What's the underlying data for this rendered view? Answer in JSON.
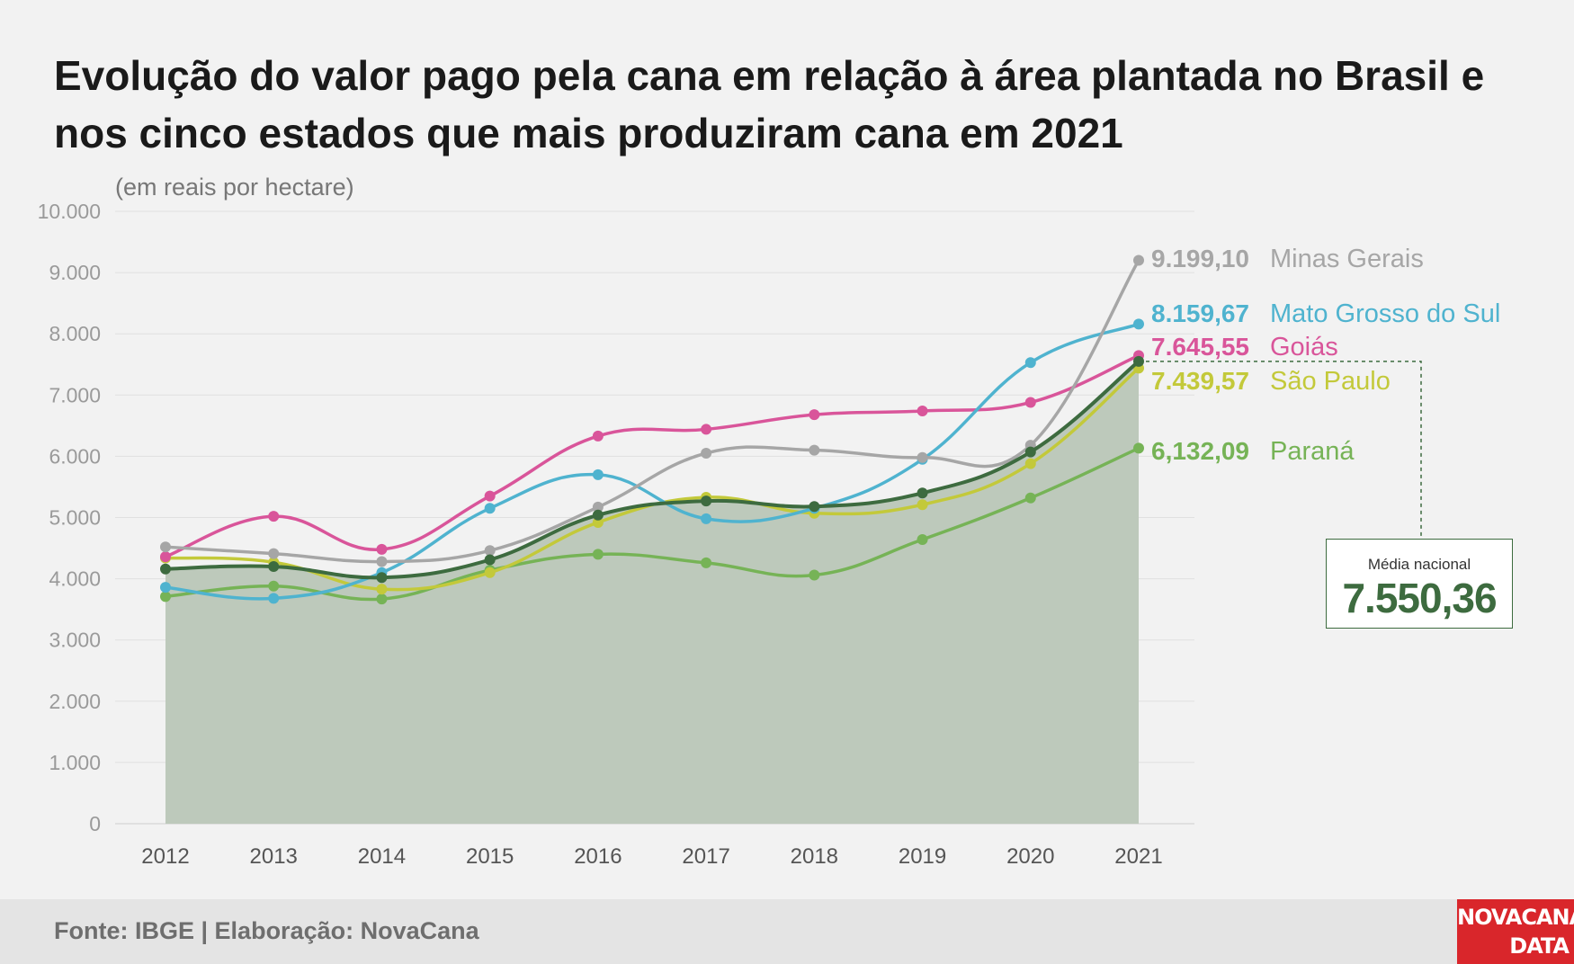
{
  "title": "Evolução do valor pago pela cana em relação à área plantada no Brasil e nos cinco estados que mais produziram cana em 2021",
  "colors": {
    "background": "#f2f2f2",
    "area_fill": "#bdc9bb",
    "national": "#3d6b3f",
    "minas_gerais": "#a6a6a6",
    "mato_grosso_do_sul": "#4fb3cf",
    "goias": "#d9559a",
    "sao_paulo": "#c3c93a",
    "parana": "#76b356",
    "logo": "#d9262b"
  },
  "average_box": {
    "label": "Média nacional",
    "value": "7.550,36"
  },
  "footer": {
    "source": "Fonte: IBGE | Elaboração: NovaCana",
    "logo_line1": "NOVACANA",
    "logo_line2": "DATA"
  },
  "chart_data": {
    "type": "line",
    "title": "Evolução do valor pago pela cana em relação à área plantada no Brasil e nos cinco estados que mais produziram cana em 2021",
    "subtitle": "(em reais por hectare)",
    "xlabel": "",
    "ylabel": "",
    "ylim": [
      0,
      10000
    ],
    "grid": true,
    "legend": "end-labels",
    "y_ticks": [
      0,
      1000,
      2000,
      3000,
      4000,
      5000,
      6000,
      7000,
      8000,
      9000,
      10000
    ],
    "y_tick_labels": [
      "0",
      "1.000",
      "2.000",
      "3.000",
      "4.000",
      "5.000",
      "6.000",
      "7.000",
      "8.000",
      "9.000",
      "10.000"
    ],
    "x": [
      "2012",
      "2013",
      "2014",
      "2015",
      "2016",
      "2017",
      "2018",
      "2019",
      "2020",
      "2021"
    ],
    "series": [
      {
        "key": "minas_gerais",
        "name": "Minas Gerais",
        "end_label": "9.199,10",
        "color": "#a6a6a6",
        "values": [
          4520,
          4410,
          4280,
          4460,
          5170,
          6050,
          6100,
          5980,
          6180,
          9199.1
        ]
      },
      {
        "key": "mato_grosso_do_sul",
        "name": "Mato Grosso do Sul",
        "end_label": "8.159,67",
        "color": "#4fb3cf",
        "values": [
          3860,
          3680,
          4100,
          5150,
          5700,
          4980,
          5150,
          5950,
          7530,
          8159.67
        ]
      },
      {
        "key": "goias",
        "name": "Goiás",
        "end_label": "7.645,55",
        "color": "#d9559a",
        "values": [
          4360,
          5020,
          4480,
          5350,
          6330,
          6440,
          6680,
          6740,
          6880,
          7645.55
        ]
      },
      {
        "key": "sao_paulo",
        "name": "São Paulo",
        "end_label": "7.439,57",
        "color": "#c3c93a",
        "values": [
          4340,
          4270,
          3830,
          4100,
          4920,
          5330,
          5070,
          5210,
          5880,
          7439.57
        ]
      },
      {
        "key": "parana",
        "name": "Paraná",
        "end_label": "6,132,09",
        "color": "#76b356",
        "values": [
          3710,
          3880,
          3670,
          4140,
          4400,
          4260,
          4060,
          4640,
          5320,
          6132.09
        ]
      },
      {
        "key": "national",
        "name": "Média nacional",
        "end_label": "7.550,36",
        "color": "#3d6b3f",
        "values": [
          4160,
          4200,
          4020,
          4310,
          5040,
          5270,
          5180,
          5400,
          6070,
          7550.36
        ]
      }
    ]
  }
}
